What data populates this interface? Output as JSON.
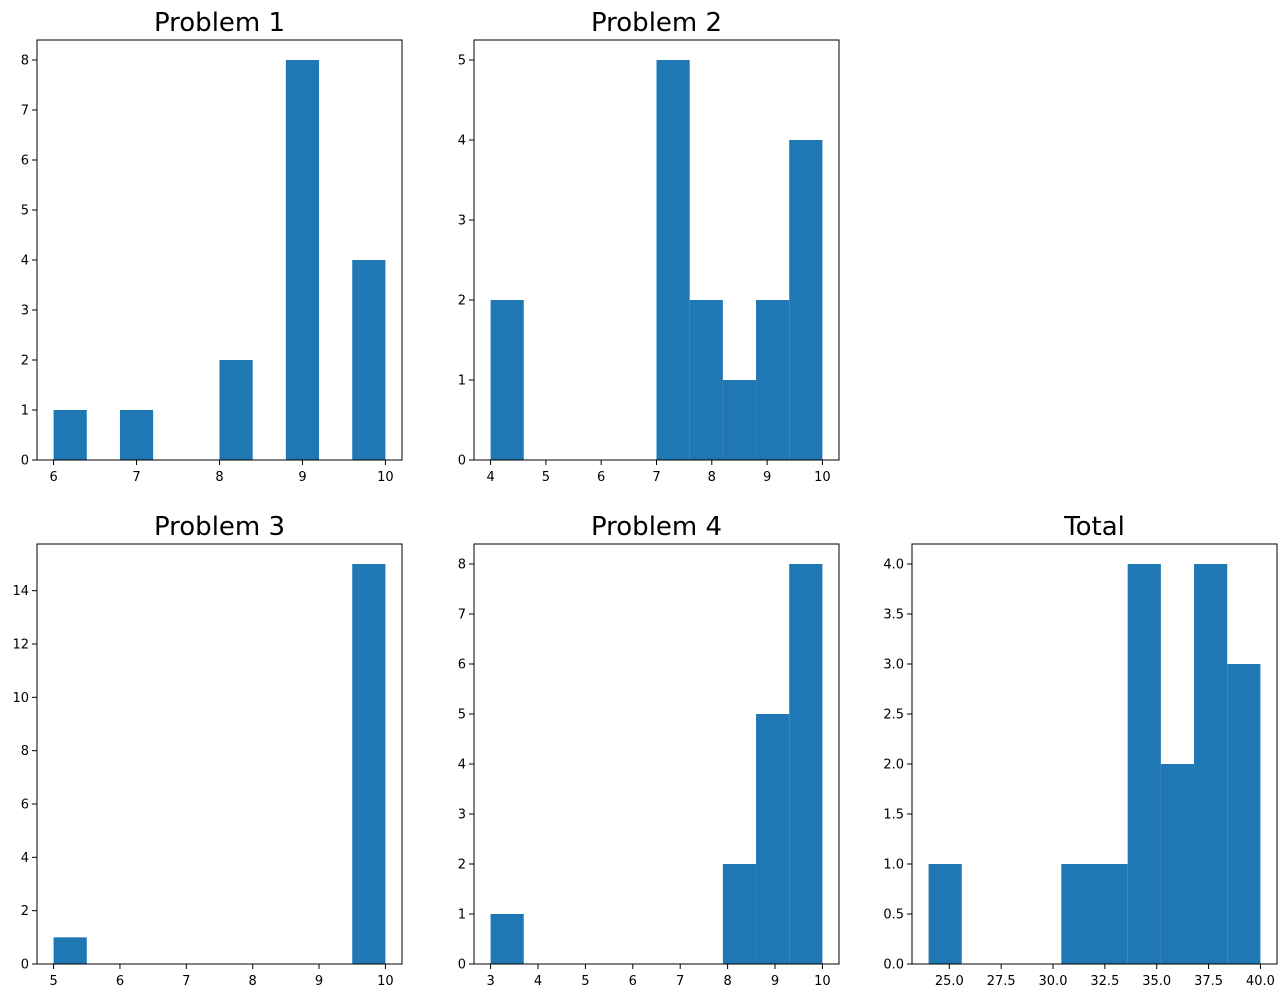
{
  "bar_color": "#1f77b4",
  "chart_data": [
    {
      "type": "bar",
      "title": "Problem 1",
      "bins": [
        {
          "x0": 6.0,
          "x1": 6.4,
          "count": 1
        },
        {
          "x0": 6.4,
          "x1": 6.8,
          "count": 0
        },
        {
          "x0": 6.8,
          "x1": 7.2,
          "count": 1
        },
        {
          "x0": 7.2,
          "x1": 7.6,
          "count": 0
        },
        {
          "x0": 7.6,
          "x1": 8.0,
          "count": 0
        },
        {
          "x0": 8.0,
          "x1": 8.4,
          "count": 2
        },
        {
          "x0": 8.4,
          "x1": 8.8,
          "count": 0
        },
        {
          "x0": 8.8,
          "x1": 9.2,
          "count": 8
        },
        {
          "x0": 9.2,
          "x1": 9.6,
          "count": 0
        },
        {
          "x0": 9.6,
          "x1": 10.0,
          "count": 4
        }
      ],
      "xlim": [
        5.8,
        10.2
      ],
      "ylim": [
        0,
        8.4
      ],
      "xticks": [
        6,
        7,
        8,
        9,
        10
      ],
      "xtick_labels": [
        "6",
        "7",
        "8",
        "9",
        "10"
      ],
      "yticks": [
        0,
        1,
        2,
        3,
        4,
        5,
        6,
        7,
        8
      ],
      "ytick_labels": [
        "0",
        "1",
        "2",
        "3",
        "4",
        "5",
        "6",
        "7",
        "8"
      ]
    },
    {
      "type": "bar",
      "title": "Problem 2",
      "bins": [
        {
          "x0": 4.0,
          "x1": 4.6,
          "count": 2
        },
        {
          "x0": 4.6,
          "x1": 5.2,
          "count": 0
        },
        {
          "x0": 5.2,
          "x1": 5.8,
          "count": 0
        },
        {
          "x0": 5.8,
          "x1": 6.4,
          "count": 0
        },
        {
          "x0": 6.4,
          "x1": 7.0,
          "count": 0
        },
        {
          "x0": 7.0,
          "x1": 7.6,
          "count": 5
        },
        {
          "x0": 7.6,
          "x1": 8.2,
          "count": 2
        },
        {
          "x0": 8.2,
          "x1": 8.8,
          "count": 1
        },
        {
          "x0": 8.8,
          "x1": 9.4,
          "count": 2
        },
        {
          "x0": 9.4,
          "x1": 10.0,
          "count": 4
        }
      ],
      "xlim": [
        3.7,
        10.3
      ],
      "ylim": [
        0,
        5.25
      ],
      "xticks": [
        4,
        5,
        6,
        7,
        8,
        9,
        10
      ],
      "xtick_labels": [
        "4",
        "5",
        "6",
        "7",
        "8",
        "9",
        "10"
      ],
      "yticks": [
        0,
        1,
        2,
        3,
        4,
        5
      ],
      "ytick_labels": [
        "0",
        "1",
        "2",
        "3",
        "4",
        "5"
      ]
    },
    {
      "type": "bar",
      "title": "Problem 3",
      "bins": [
        {
          "x0": 5.0,
          "x1": 5.5,
          "count": 1
        },
        {
          "x0": 5.5,
          "x1": 6.0,
          "count": 0
        },
        {
          "x0": 6.0,
          "x1": 6.5,
          "count": 0
        },
        {
          "x0": 6.5,
          "x1": 7.0,
          "count": 0
        },
        {
          "x0": 7.0,
          "x1": 7.5,
          "count": 0
        },
        {
          "x0": 7.5,
          "x1": 8.0,
          "count": 0
        },
        {
          "x0": 8.0,
          "x1": 8.5,
          "count": 0
        },
        {
          "x0": 8.5,
          "x1": 9.0,
          "count": 0
        },
        {
          "x0": 9.0,
          "x1": 9.5,
          "count": 0
        },
        {
          "x0": 9.5,
          "x1": 10.0,
          "count": 15
        }
      ],
      "xlim": [
        4.75,
        10.25
      ],
      "ylim": [
        0,
        15.75
      ],
      "xticks": [
        5,
        6,
        7,
        8,
        9,
        10
      ],
      "xtick_labels": [
        "5",
        "6",
        "7",
        "8",
        "9",
        "10"
      ],
      "yticks": [
        0,
        2,
        4,
        6,
        8,
        10,
        12,
        14
      ],
      "ytick_labels": [
        "0",
        "2",
        "4",
        "6",
        "8",
        "10",
        "12",
        "14"
      ]
    },
    {
      "type": "bar",
      "title": "Problem 4",
      "bins": [
        {
          "x0": 3.0,
          "x1": 3.7,
          "count": 1
        },
        {
          "x0": 3.7,
          "x1": 4.4,
          "count": 0
        },
        {
          "x0": 4.4,
          "x1": 5.1,
          "count": 0
        },
        {
          "x0": 5.1,
          "x1": 5.8,
          "count": 0
        },
        {
          "x0": 5.8,
          "x1": 6.5,
          "count": 0
        },
        {
          "x0": 6.5,
          "x1": 7.2,
          "count": 0
        },
        {
          "x0": 7.2,
          "x1": 7.9,
          "count": 0
        },
        {
          "x0": 7.9,
          "x1": 8.6,
          "count": 2
        },
        {
          "x0": 8.6,
          "x1": 9.3,
          "count": 5
        },
        {
          "x0": 9.3,
          "x1": 10.0,
          "count": 8
        }
      ],
      "xlim": [
        2.65,
        10.35
      ],
      "ylim": [
        0,
        8.4
      ],
      "xticks": [
        3,
        4,
        5,
        6,
        7,
        8,
        9,
        10
      ],
      "xtick_labels": [
        "3",
        "4",
        "5",
        "6",
        "7",
        "8",
        "9",
        "10"
      ],
      "yticks": [
        0,
        1,
        2,
        3,
        4,
        5,
        6,
        7,
        8
      ],
      "ytick_labels": [
        "0",
        "1",
        "2",
        "3",
        "4",
        "5",
        "6",
        "7",
        "8"
      ]
    },
    {
      "type": "bar",
      "title": "Total",
      "bins": [
        {
          "x0": 24.0,
          "x1": 25.6,
          "count": 1
        },
        {
          "x0": 25.6,
          "x1": 27.2,
          "count": 0
        },
        {
          "x0": 27.2,
          "x1": 28.8,
          "count": 0
        },
        {
          "x0": 28.8,
          "x1": 30.4,
          "count": 0
        },
        {
          "x0": 30.4,
          "x1": 32.0,
          "count": 1
        },
        {
          "x0": 32.0,
          "x1": 33.6,
          "count": 1
        },
        {
          "x0": 33.6,
          "x1": 35.2,
          "count": 4
        },
        {
          "x0": 35.2,
          "x1": 36.8,
          "count": 2
        },
        {
          "x0": 36.8,
          "x1": 38.4,
          "count": 4
        },
        {
          "x0": 38.4,
          "x1": 40.0,
          "count": 3
        }
      ],
      "xlim": [
        23.2,
        40.8
      ],
      "ylim": [
        0,
        4.2
      ],
      "xticks": [
        25.0,
        27.5,
        30.0,
        32.5,
        35.0,
        37.5,
        40.0
      ],
      "xtick_labels": [
        "25.0",
        "27.5",
        "30.0",
        "32.5",
        "35.0",
        "37.5",
        "40.0"
      ],
      "yticks": [
        0,
        0.5,
        1.0,
        1.5,
        2.0,
        2.5,
        3.0,
        3.5,
        4.0
      ],
      "ytick_labels": [
        "0.0",
        "0.5",
        "1.0",
        "1.5",
        "2.0",
        "2.5",
        "3.0",
        "3.5",
        "4.0"
      ]
    }
  ]
}
